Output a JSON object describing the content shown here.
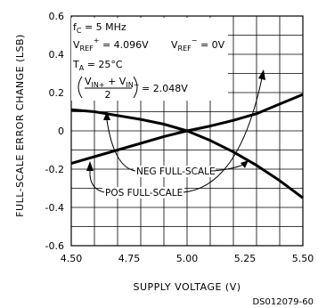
{
  "chart_data": {
    "type": "line",
    "xlabel": "SUPPLY VOLTAGE (V)",
    "ylabel": "FULL-SCALE ERROR CHANGE (LSB)",
    "xlim": [
      4.5,
      5.5
    ],
    "ylim": [
      -0.6,
      0.6
    ],
    "x_ticks": [
      "4.50",
      "4.75",
      "5.00",
      "5.25",
      "5.50"
    ],
    "y_ticks": [
      "0.6",
      "0.4",
      "0.2",
      "0",
      "-0.2",
      "-0.4",
      "-0.6"
    ],
    "grid": true,
    "series": [
      {
        "name": "NEG FULL-SCALE",
        "x": [
          4.5,
          4.6,
          4.7,
          4.8,
          4.9,
          5.0,
          5.1,
          5.2,
          5.3,
          5.4,
          5.5
        ],
        "y": [
          0.11,
          0.1,
          0.08,
          0.06,
          0.035,
          0.0,
          -0.05,
          -0.11,
          -0.18,
          -0.26,
          -0.35
        ]
      },
      {
        "name": "POS FULL-SCALE",
        "x": [
          4.5,
          4.6,
          4.7,
          4.8,
          4.9,
          5.0,
          5.1,
          5.2,
          5.3,
          5.4,
          5.5
        ],
        "y": [
          -0.17,
          -0.135,
          -0.1,
          -0.065,
          -0.03,
          0.0,
          0.025,
          0.055,
          0.09,
          0.14,
          0.19
        ]
      }
    ],
    "annotations": {
      "fc": "f",
      "fc_sub": "C",
      "fc_val": " = 5 MHz",
      "vrefp": "V",
      "vrefp_sub": "REF",
      "vrefp_sup": "+",
      "vrefp_val": " = 4.096V",
      "vrefm": "V",
      "vrefm_sub": "REF",
      "vrefm_sup": "−",
      "vrefm_val": " = 0V",
      "ta": "T",
      "ta_sub": "A",
      "ta_val": " = 25°C",
      "vin_num_a": "V",
      "vin_num_a_sub": "IN+",
      "vin_plus": " + ",
      "vin_num_b": "V",
      "vin_num_b_sub": "IN−",
      "vin_den": "2",
      "vin_val": " = 2.048V"
    },
    "footer": "DS012079-60"
  }
}
